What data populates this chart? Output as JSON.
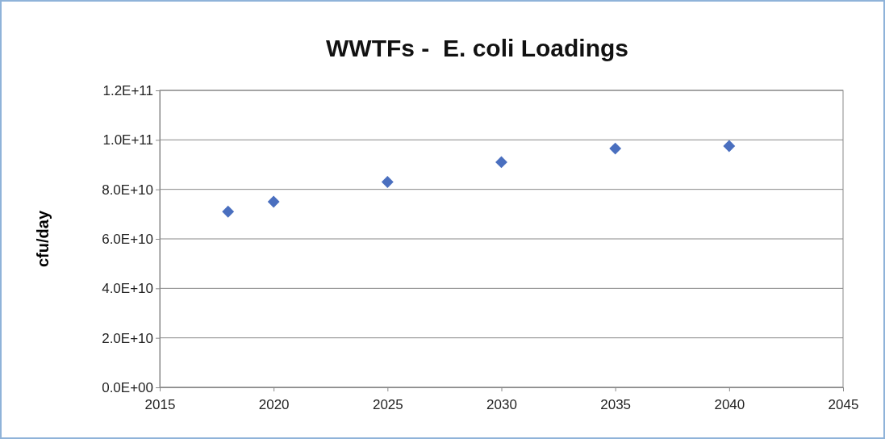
{
  "chart_data": {
    "type": "scatter",
    "title": "WWTFs -  E. coli Loadings",
    "ylabel": "cfu/day",
    "x": [
      2018,
      2020,
      2025,
      2030,
      2035,
      2040
    ],
    "series": [
      {
        "color": "#4a6fbf",
        "values": [
          71000000000,
          75000000000,
          83000000000,
          91000000000,
          96500000000,
          97500000000
        ]
      }
    ],
    "xlim": [
      2015,
      2045
    ],
    "xticks": [
      2015,
      2020,
      2025,
      2030,
      2035,
      2040,
      2045
    ],
    "ylim": [
      0,
      120000000000
    ],
    "yticks": [
      {
        "value": 0,
        "label": "0.0E+00"
      },
      {
        "value": 20000000000,
        "label": "2.0E+10"
      },
      {
        "value": 40000000000,
        "label": "4.0E+10"
      },
      {
        "value": 60000000000,
        "label": "6.0E+10"
      },
      {
        "value": 80000000000,
        "label": "8.0E+10"
      },
      {
        "value": 100000000000,
        "label": "1.0E+11"
      },
      {
        "value": 120000000000,
        "label": "1.2E+11"
      }
    ],
    "grid": "y",
    "marker": "diamond"
  }
}
